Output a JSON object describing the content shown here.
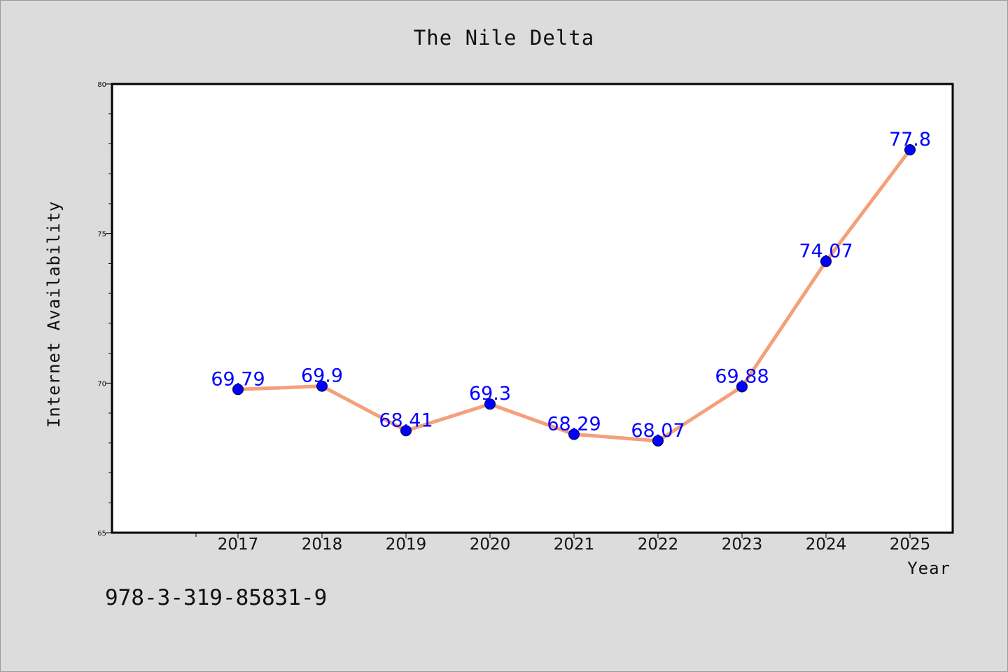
{
  "chart_data": {
    "type": "line",
    "title": "The Nile Delta",
    "xlabel": "Year",
    "ylabel": "Internet Availability",
    "x": [
      "2017",
      "2018",
      "2019",
      "2020",
      "2021",
      "2022",
      "2023",
      "2024",
      "2025"
    ],
    "series": [
      {
        "values": [
          69.79,
          69.9,
          68.41,
          69.3,
          68.29,
          68.07,
          69.88,
          74.07,
          77.8
        ],
        "labels": [
          "69.79",
          "69.9",
          "68.41",
          "69.3",
          "68.29",
          "68.07",
          "69.88",
          "74.07",
          "77.8"
        ],
        "line_color": "#f4a07a",
        "marker_color": "#0000ff"
      }
    ],
    "ylim": [
      65,
      80
    ],
    "yticks": [
      "65",
      "70",
      "75",
      "80"
    ],
    "grid": false,
    "legend": "none"
  },
  "footer_text": "978-3-319-85831-9",
  "colors": {
    "background": "#dcdcdc",
    "plot_area": "#ffffff",
    "data_label": "#0000ff"
  }
}
